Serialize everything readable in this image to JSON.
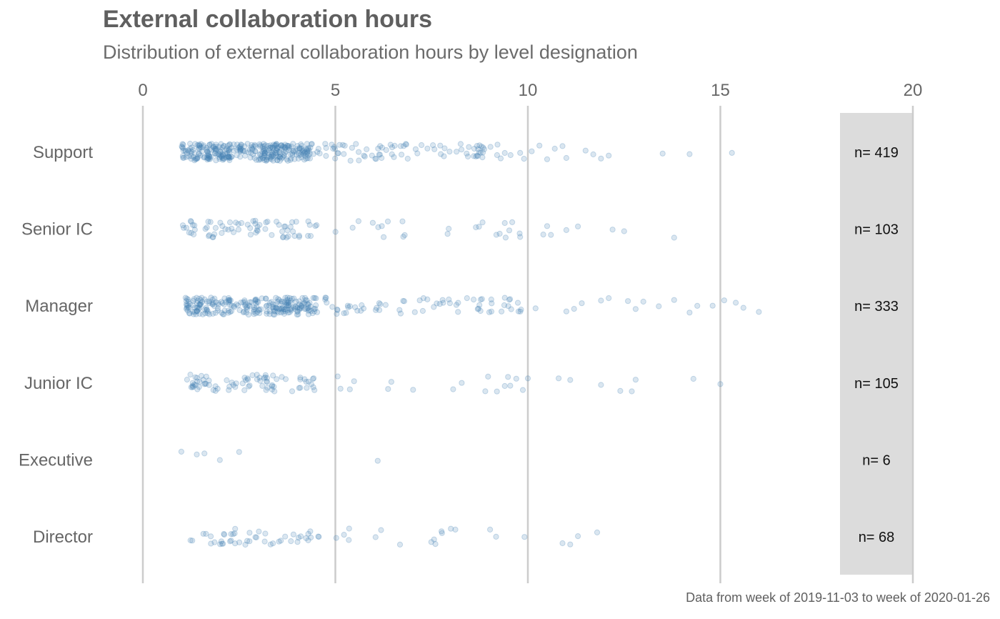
{
  "title": "External collaboration hours",
  "subtitle": "Distribution of external collaboration hours by level designation",
  "caption": "Data from week of 2019-11-03 to week of 2020-01-26",
  "colors": {
    "point": "#4682b4",
    "grid": "#cccccc",
    "count_panel": "#dcdcdc",
    "text": "#666666"
  },
  "chart_data": {
    "type": "scatter",
    "style": "jitter strip plot",
    "xlim": [
      0,
      20
    ],
    "xticks": [
      0,
      5,
      10,
      15,
      20
    ],
    "x_axis_position": "top",
    "grid": "vertical major only",
    "point_alpha": 0.2,
    "categories": [
      "Support",
      "Senior IC",
      "Manager",
      "Junior IC",
      "Executive",
      "Director"
    ],
    "counts": [
      "n= 419",
      "n= 103",
      "n= 333",
      "n= 105",
      "n= 6",
      "n= 68"
    ],
    "series": [
      {
        "category": "Support",
        "n": 419,
        "range": [
          0.8,
          15.3
        ],
        "notable_values": [
          9.2,
          9.4,
          9.8,
          9.9,
          10.1,
          10.3,
          10.5,
          10.7,
          10.9,
          11.0,
          11.5,
          11.7,
          11.9,
          12.1,
          13.5,
          14.2,
          15.3
        ]
      },
      {
        "category": "Senior IC",
        "n": 103,
        "range": [
          0.8,
          13.8
        ],
        "notable_values": [
          9.4,
          9.8,
          10.4,
          10.5,
          10.6,
          11.0,
          11.3,
          12.2,
          12.5,
          13.8
        ]
      },
      {
        "category": "Manager",
        "n": 333,
        "range": [
          0.9,
          16.0
        ],
        "notable_values": [
          10.2,
          11.0,
          11.2,
          11.4,
          11.9,
          12.1,
          12.6,
          12.8,
          13.0,
          13.4,
          13.8,
          14.2,
          14.4,
          14.8,
          15.1,
          15.4,
          15.6,
          16.0
        ]
      },
      {
        "category": "Junior IC",
        "n": 105,
        "range": [
          0.9,
          15.0
        ],
        "notable_values": [
          9.4,
          9.7,
          10.0,
          10.8,
          11.1,
          11.9,
          12.4,
          12.7,
          12.8,
          14.3,
          15.0
        ]
      },
      {
        "category": "Executive",
        "n": 6,
        "values": [
          1.0,
          1.4,
          1.6,
          2.0,
          2.5,
          6.1
        ]
      },
      {
        "category": "Director",
        "n": 68,
        "range": [
          1.0,
          11.8
        ],
        "notable_values": [
          7.6,
          8.0,
          10.9,
          11.1,
          11.3,
          11.8
        ]
      }
    ]
  }
}
